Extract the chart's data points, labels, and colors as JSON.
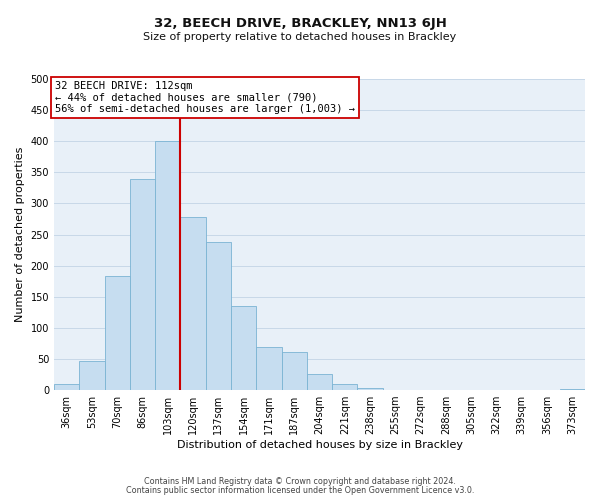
{
  "title": "32, BEECH DRIVE, BRACKLEY, NN13 6JH",
  "subtitle": "Size of property relative to detached houses in Brackley",
  "xlabel": "Distribution of detached houses by size in Brackley",
  "ylabel": "Number of detached properties",
  "bar_labels": [
    "36sqm",
    "53sqm",
    "70sqm",
    "86sqm",
    "103sqm",
    "120sqm",
    "137sqm",
    "154sqm",
    "171sqm",
    "187sqm",
    "204sqm",
    "221sqm",
    "238sqm",
    "255sqm",
    "272sqm",
    "288sqm",
    "305sqm",
    "322sqm",
    "339sqm",
    "356sqm",
    "373sqm"
  ],
  "bar_heights": [
    10,
    47,
    183,
    340,
    400,
    278,
    238,
    135,
    70,
    62,
    26,
    10,
    3,
    0,
    0,
    0,
    0,
    0,
    0,
    0,
    2
  ],
  "bar_color": "#c6ddf0",
  "bar_edge_color": "#7ab3d3",
  "vline_x_index": 4.5,
  "vline_color": "#cc0000",
  "annotation_line1": "32 BEECH DRIVE: 112sqm",
  "annotation_line2": "← 44% of detached houses are smaller (790)",
  "annotation_line3": "56% of semi-detached houses are larger (1,003) →",
  "annotation_box_color": "#ffffff",
  "annotation_box_edge": "#cc0000",
  "ylim": [
    0,
    500
  ],
  "yticks": [
    0,
    50,
    100,
    150,
    200,
    250,
    300,
    350,
    400,
    450,
    500
  ],
  "footer1": "Contains HM Land Registry data © Crown copyright and database right 2024.",
  "footer2": "Contains public sector information licensed under the Open Government Licence v3.0.",
  "background_color": "#ffffff",
  "plot_bg_color": "#e8f0f8",
  "grid_color": "#c8d8e8",
  "title_fontsize": 9.5,
  "subtitle_fontsize": 8,
  "axis_label_fontsize": 8,
  "tick_fontsize": 7,
  "annotation_fontsize": 7.5,
  "footer_fontsize": 5.8
}
